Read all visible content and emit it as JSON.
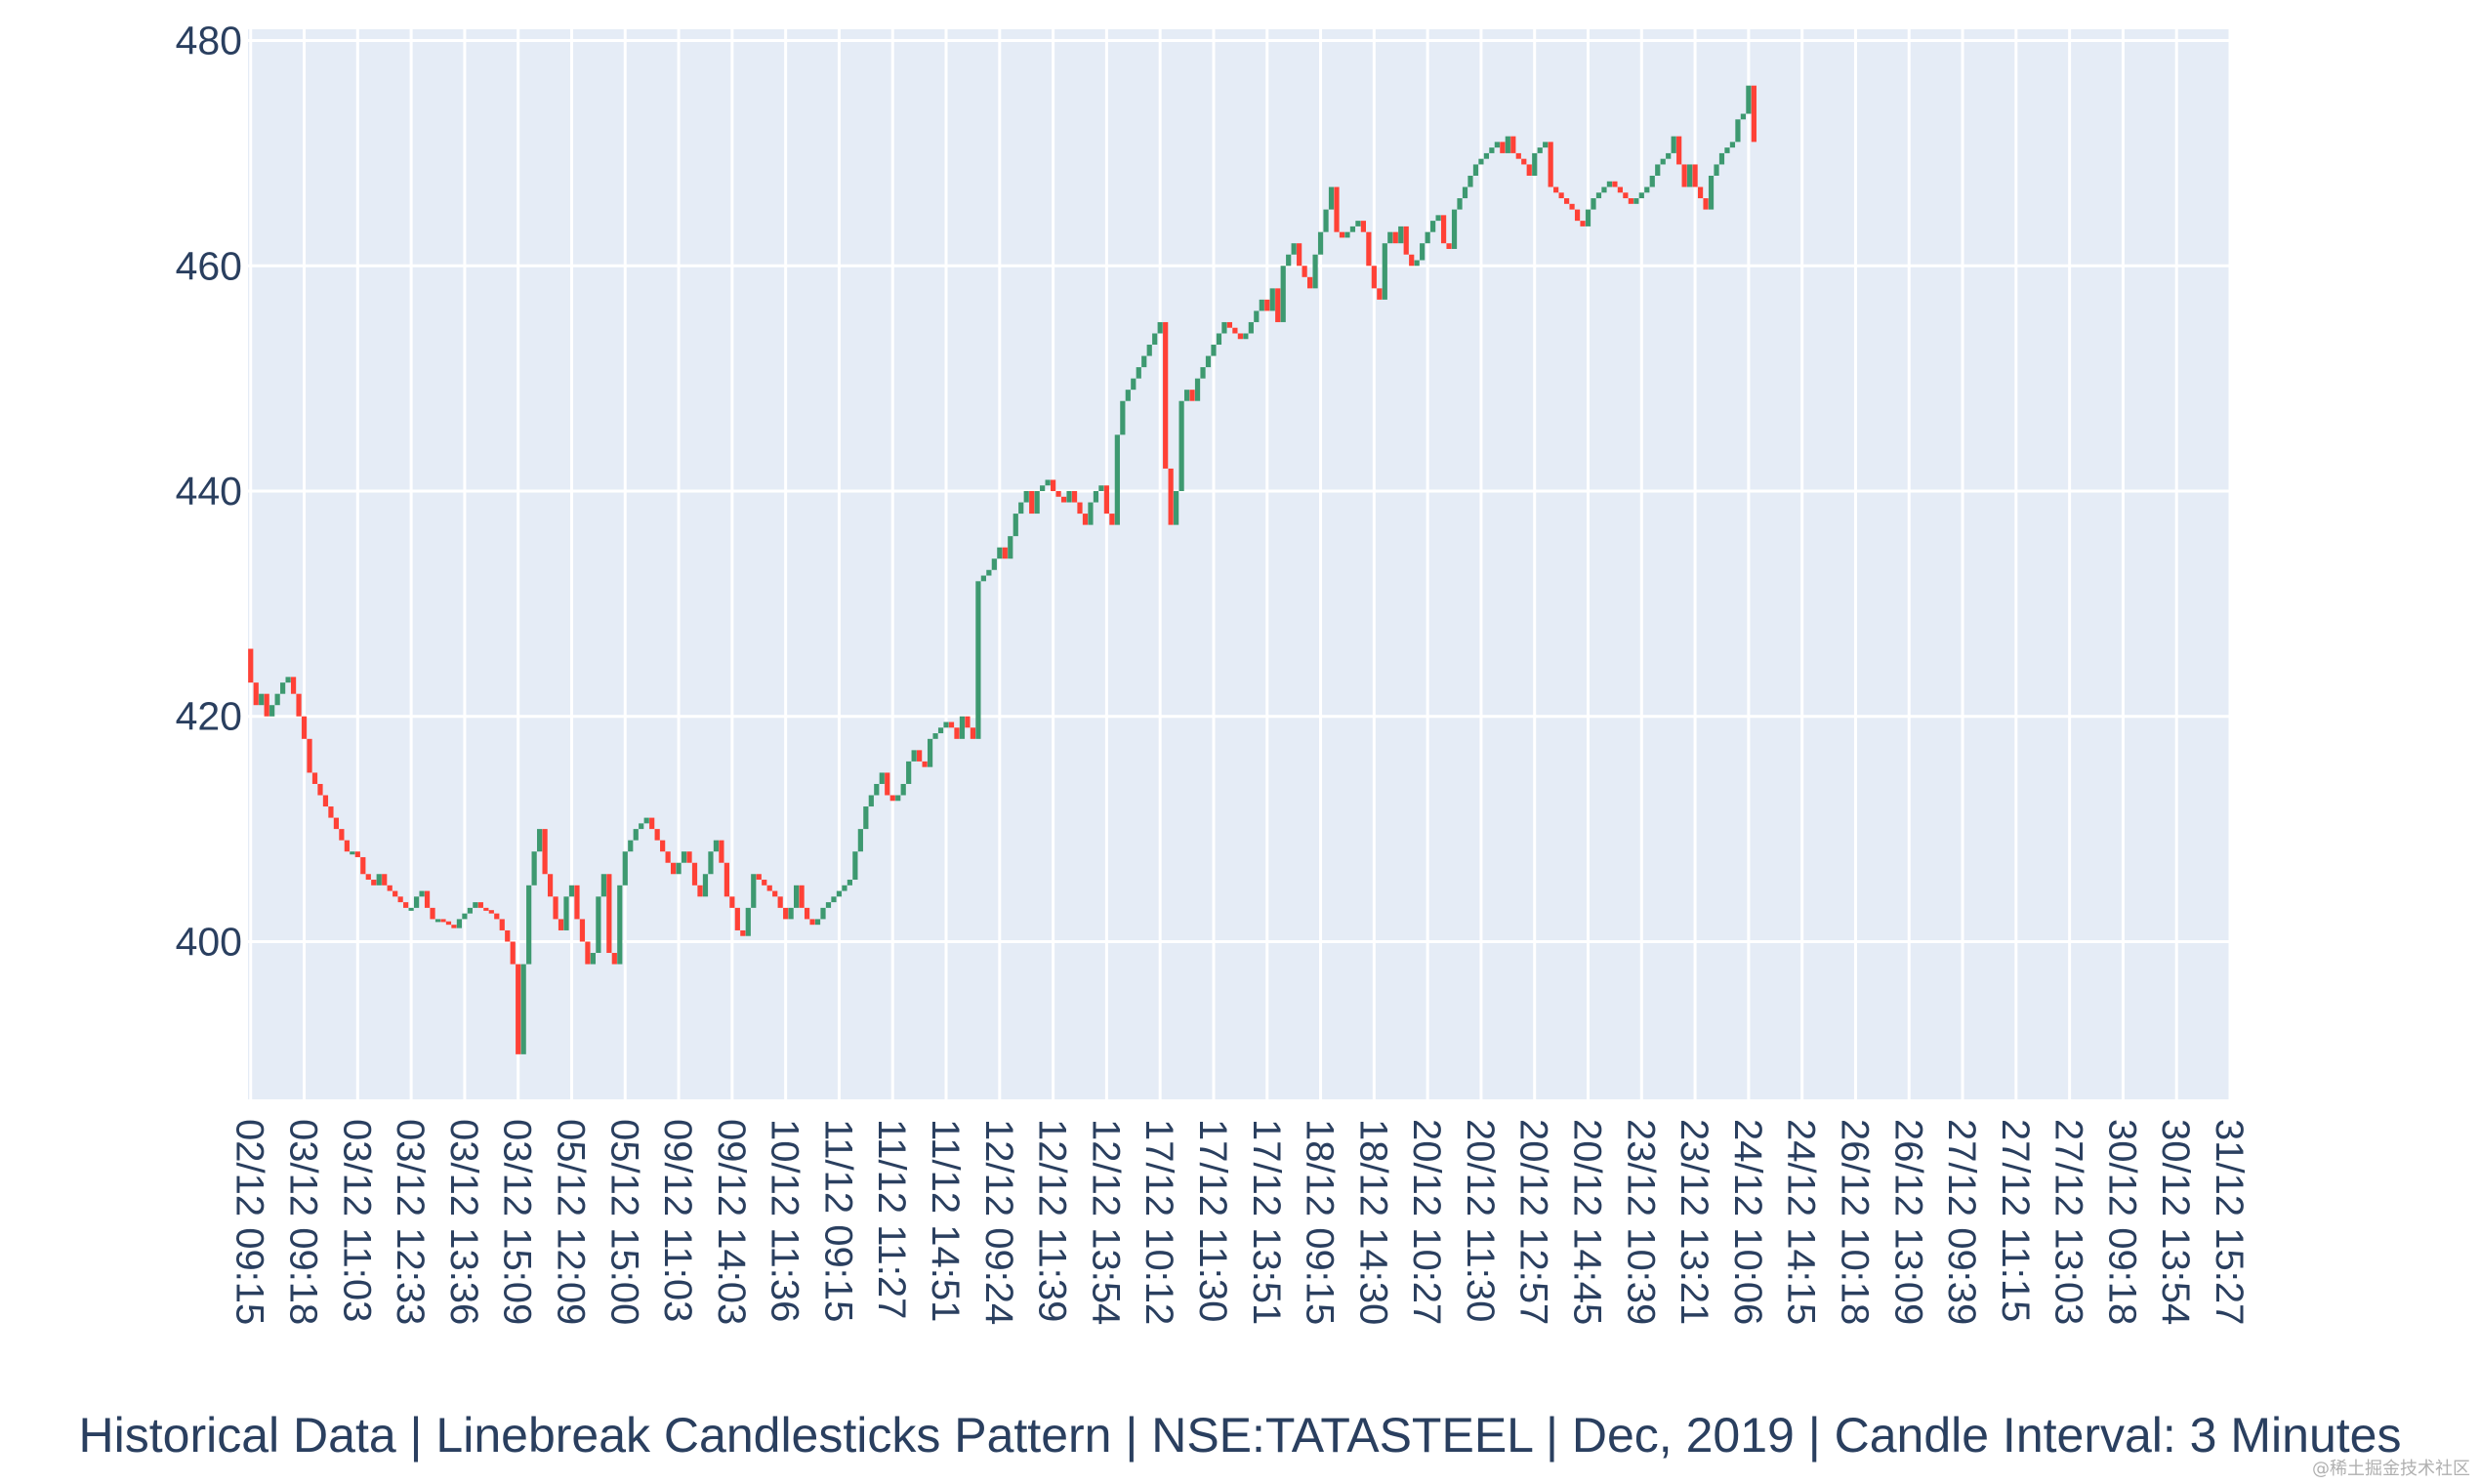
{
  "chart_data": {
    "type": "candlestick",
    "title": "Historical Data | Linebreak Candlesticks Pattern | NSE:TATASTEEL | Dec, 2019 | Candle Interval: 3 Minutes",
    "xlabel": "",
    "ylabel": "",
    "ylim": [
      386,
      481
    ],
    "y_ticks": [
      400,
      420,
      440,
      460,
      480
    ],
    "grid": true,
    "x_tick_labels": [
      "02/12 09:15",
      "03/12 09:18",
      "03/12 11:03",
      "03/12 12:33",
      "03/12 13:36",
      "03/12 15:09",
      "05/12 12:09",
      "05/12 15:00",
      "09/12 11:03",
      "09/12 14:03",
      "10/12 11:36",
      "11/12 09:15",
      "11/12 11:27",
      "11/12 14:51",
      "12/12 09:24",
      "12/12 11:39",
      "12/12 13:54",
      "17/12 10:12",
      "17/12 11:30",
      "17/12 13:51",
      "18/12 09:15",
      "18/12 14:30",
      "20/12 10:27",
      "20/12 11:30",
      "20/12 12:57",
      "20/12 14:45",
      "23/12 10:39",
      "23/12 13:21",
      "24/12 10:06",
      "24/12 14:15",
      "26/12 10:18",
      "26/12 13:09",
      "27/12 09:39",
      "27/12 11:15",
      "27/12 13:03",
      "30/12 09:18",
      "30/12 13:54",
      "31/12 15:27"
    ],
    "candles_per_tick": 10,
    "colors": {
      "increasing": "#3d9970",
      "decreasing": "#ff4136",
      "plot_bg": "#e5ecf6",
      "grid": "#ffffff",
      "text": "#2a3f5f"
    },
    "series": [
      {
        "name": "",
        "close_path": [
          426,
          423,
          421,
          422,
          420,
          421,
          422,
          423,
          423.5,
          422,
          420,
          418,
          415,
          414,
          413,
          412,
          411,
          410,
          409,
          408,
          408,
          407.5,
          406,
          405.5,
          405,
          406,
          405,
          404.5,
          404,
          403.5,
          403,
          403,
          404,
          404.5,
          403,
          402,
          402,
          401.8,
          401.5,
          401.2,
          402,
          402.5,
          403,
          403.5,
          403,
          402.8,
          402.5,
          402,
          401,
          400,
          398,
          390,
          398,
          405,
          408,
          410,
          406,
          404,
          402,
          401,
          404,
          405,
          402,
          400,
          398,
          399,
          404,
          406,
          399,
          398,
          405,
          408,
          409,
          410,
          410.5,
          411,
          410,
          409,
          408,
          407,
          406,
          407,
          408,
          407,
          405,
          404,
          406,
          408,
          409,
          407,
          404,
          403,
          401,
          400.5,
          403,
          406,
          405.5,
          405,
          404.5,
          404,
          403,
          402,
          403,
          405,
          403,
          402,
          401.5,
          402,
          403,
          403.5,
          404,
          404.5,
          405,
          405.5,
          408,
          410,
          412,
          413,
          414,
          415,
          413,
          412.5,
          413,
          414,
          416,
          417,
          416,
          415.5,
          418,
          418.5,
          419,
          419.5,
          419,
          418,
          420,
          419,
          418,
          432,
          432.5,
          433,
          434,
          435,
          434,
          436,
          438,
          439,
          440,
          438,
          440,
          440.5,
          441,
          440,
          439.5,
          439,
          440,
          439,
          438,
          437,
          439,
          440,
          440.5,
          438,
          437,
          445,
          448,
          449,
          450,
          451,
          452,
          453,
          454,
          455,
          442,
          437,
          440,
          448,
          449,
          448,
          450,
          451,
          452,
          453,
          454,
          455,
          454.5,
          454,
          453.5,
          454,
          455,
          456,
          457,
          456,
          458,
          455,
          460,
          461,
          462,
          460,
          459,
          458,
          461,
          463,
          465,
          467,
          463,
          462.5,
          463,
          463.5,
          464,
          463,
          460,
          458,
          457,
          462,
          463,
          462,
          463.5,
          461,
          460,
          460.5,
          462,
          463,
          464,
          464.5,
          462,
          461.5,
          465,
          466,
          467,
          468,
          469,
          469.5,
          470,
          470.5,
          471,
          470,
          471.5,
          470,
          469.5,
          469,
          468,
          470,
          470.5,
          471,
          467,
          466.5,
          466,
          465.5,
          465,
          464,
          463.5,
          465,
          466,
          466.5,
          467,
          467.5,
          467,
          466.5,
          466,
          465.5,
          466,
          466.5,
          467,
          468,
          469,
          469.5,
          470,
          471.5,
          469,
          467,
          469,
          467,
          466,
          465,
          468,
          469,
          470,
          470.5,
          471,
          473,
          473.5,
          476,
          471
        ]
      }
    ]
  },
  "watermark": "@稀土掘金技术社区"
}
